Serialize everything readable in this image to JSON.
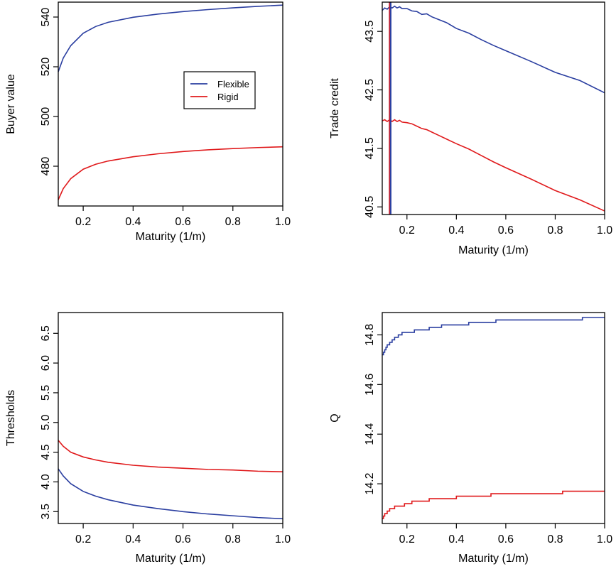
{
  "chart_data": [
    {
      "type": "line",
      "xlabel": "Maturity (1/m)",
      "ylabel": "Buyer value",
      "xlim": [
        0.1,
        1.0
      ],
      "ylim": [
        464,
        546
      ],
      "xticks": [
        0.2,
        0.4,
        0.6,
        0.8,
        1.0
      ],
      "xtick_labels": [
        "0.2",
        "0.4",
        "0.6",
        "0.8",
        "1.0"
      ],
      "yticks": [
        480,
        500,
        520,
        540
      ],
      "ytick_labels": [
        "480",
        "500",
        "520",
        "540"
      ],
      "legend": {
        "placement": "center-right",
        "entries": [
          {
            "name": "Flexible",
            "color": "#2a3ea0"
          },
          {
            "name": "Rigid",
            "color": "#e0191b"
          }
        ]
      },
      "series": [
        {
          "name": "Flexible",
          "color": "#2a3ea0",
          "x": [
            0.1,
            0.12,
            0.15,
            0.2,
            0.25,
            0.3,
            0.4,
            0.5,
            0.6,
            0.7,
            0.8,
            0.9,
            1.0
          ],
          "y": [
            518,
            523.5,
            528.5,
            533.5,
            536.2,
            537.9,
            539.9,
            541.2,
            542.2,
            543,
            543.7,
            544.3,
            544.8
          ]
        },
        {
          "name": "Rigid",
          "color": "#e0191b",
          "x": [
            0.1,
            0.12,
            0.15,
            0.2,
            0.25,
            0.3,
            0.4,
            0.5,
            0.6,
            0.7,
            0.8,
            0.9,
            1.0
          ],
          "y": [
            466.5,
            471,
            475,
            478.8,
            480.8,
            482.1,
            483.8,
            485,
            485.9,
            486.6,
            487.1,
            487.5,
            487.8
          ]
        }
      ]
    },
    {
      "type": "line",
      "xlabel": "Maturity (1/m)",
      "ylabel": "Trade credit",
      "xlim": [
        0.1,
        1.0
      ],
      "ylim": [
        40.37,
        44.0
      ],
      "xticks": [
        0.2,
        0.4,
        0.6,
        0.8,
        1.0
      ],
      "xtick_labels": [
        "0.2",
        "0.4",
        "0.6",
        "0.8",
        "1.0"
      ],
      "yticks": [
        40.5,
        41.5,
        42.5,
        43.5
      ],
      "ytick_labels": [
        "40.5",
        "41.5",
        "42.5",
        "43.5"
      ],
      "vlines": [
        {
          "x": 0.13,
          "color": "#e0191b"
        },
        {
          "x": 0.134,
          "color": "#2a3ea0"
        }
      ],
      "series": [
        {
          "name": "Flexible",
          "color": "#2a3ea0",
          "x": [
            0.1,
            0.11,
            0.12,
            0.13,
            0.14,
            0.15,
            0.16,
            0.17,
            0.18,
            0.2,
            0.22,
            0.24,
            0.26,
            0.28,
            0.3,
            0.33,
            0.36,
            0.4,
            0.45,
            0.5,
            0.55,
            0.6,
            0.7,
            0.8,
            0.9,
            1.0
          ],
          "y": [
            43.86,
            43.9,
            43.88,
            43.92,
            43.9,
            43.93,
            43.9,
            43.92,
            43.89,
            43.89,
            43.85,
            43.84,
            43.79,
            43.8,
            43.75,
            43.7,
            43.65,
            43.55,
            43.47,
            43.36,
            43.26,
            43.17,
            42.99,
            42.8,
            42.66,
            42.45
          ]
        },
        {
          "name": "Rigid",
          "color": "#e0191b",
          "x": [
            0.1,
            0.11,
            0.12,
            0.13,
            0.14,
            0.15,
            0.16,
            0.17,
            0.18,
            0.2,
            0.22,
            0.24,
            0.26,
            0.28,
            0.3,
            0.33,
            0.36,
            0.4,
            0.45,
            0.5,
            0.55,
            0.6,
            0.7,
            0.8,
            0.9,
            1.0
          ],
          "y": [
            41.97,
            41.99,
            41.96,
            41.99,
            41.96,
            41.99,
            41.96,
            41.98,
            41.95,
            41.94,
            41.92,
            41.88,
            41.84,
            41.82,
            41.78,
            41.72,
            41.66,
            41.58,
            41.49,
            41.38,
            41.27,
            41.17,
            40.98,
            40.78,
            40.62,
            40.43
          ]
        }
      ]
    },
    {
      "type": "line",
      "xlabel": "Maturity (1/m)",
      "ylabel": "Thresholds",
      "xlim": [
        0.1,
        1.0
      ],
      "ylim": [
        3.3,
        6.85
      ],
      "xticks": [
        0.2,
        0.4,
        0.6,
        0.8,
        1.0
      ],
      "xtick_labels": [
        "0.2",
        "0.4",
        "0.6",
        "0.8",
        "1.0"
      ],
      "yticks": [
        3.5,
        4.0,
        4.5,
        5.0,
        5.5,
        6.0,
        6.5
      ],
      "ytick_labels": [
        "3.5",
        "4.0",
        "4.5",
        "5.0",
        "5.5",
        "6.0",
        "6.5"
      ],
      "series": [
        {
          "name": "Flexible",
          "color": "#2a3ea0",
          "x": [
            0.1,
            0.12,
            0.15,
            0.2,
            0.25,
            0.3,
            0.4,
            0.5,
            0.6,
            0.7,
            0.8,
            0.9,
            1.0
          ],
          "y": [
            4.22,
            4.1,
            3.97,
            3.84,
            3.76,
            3.7,
            3.61,
            3.55,
            3.5,
            3.46,
            3.43,
            3.4,
            3.38
          ]
        },
        {
          "name": "Rigid",
          "color": "#e0191b",
          "x": [
            0.1,
            0.12,
            0.15,
            0.2,
            0.25,
            0.3,
            0.4,
            0.5,
            0.6,
            0.7,
            0.8,
            0.9,
            1.0
          ],
          "y": [
            4.7,
            4.6,
            4.5,
            4.42,
            4.37,
            4.33,
            4.28,
            4.25,
            4.23,
            4.21,
            4.2,
            4.18,
            4.17
          ]
        }
      ]
    },
    {
      "type": "line",
      "xlabel": "Maturity (1/m)",
      "ylabel": "Q",
      "xlim": [
        0.1,
        1.0
      ],
      "ylim": [
        14.04,
        14.89
      ],
      "xticks": [
        0.2,
        0.4,
        0.6,
        0.8,
        1.0
      ],
      "xtick_labels": [
        "0.2",
        "0.4",
        "0.6",
        "0.8",
        "1.0"
      ],
      "yticks": [
        14.2,
        14.4,
        14.6,
        14.8
      ],
      "ytick_labels": [
        "14.2",
        "14.4",
        "14.6",
        "14.8"
      ],
      "series": [
        {
          "name": "Flexible",
          "color": "#2a3ea0",
          "step": true,
          "x": [
            0.1,
            0.105,
            0.11,
            0.115,
            0.12,
            0.13,
            0.14,
            0.15,
            0.165,
            0.18,
            0.2,
            0.23,
            0.26,
            0.29,
            0.34,
            0.4,
            0.45,
            0.56,
            0.66,
            0.78,
            0.91,
            1.0
          ],
          "y": [
            14.72,
            14.73,
            14.74,
            14.75,
            14.76,
            14.77,
            14.78,
            14.79,
            14.8,
            14.81,
            14.81,
            14.82,
            14.82,
            14.83,
            14.84,
            14.84,
            14.85,
            14.86,
            14.86,
            14.86,
            14.87,
            14.87
          ]
        },
        {
          "name": "Rigid",
          "color": "#e0191b",
          "step": true,
          "x": [
            0.1,
            0.105,
            0.11,
            0.12,
            0.13,
            0.15,
            0.17,
            0.19,
            0.22,
            0.25,
            0.29,
            0.34,
            0.4,
            0.45,
            0.54,
            0.66,
            0.77,
            0.83,
            1.0
          ],
          "y": [
            14.06,
            14.07,
            14.08,
            14.09,
            14.1,
            14.11,
            14.11,
            14.12,
            14.13,
            14.13,
            14.14,
            14.14,
            14.15,
            14.15,
            14.16,
            14.16,
            14.16,
            14.17,
            14.17
          ]
        }
      ]
    }
  ]
}
